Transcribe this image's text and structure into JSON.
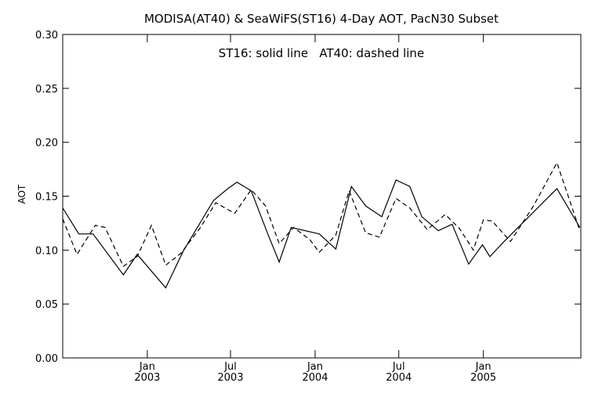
{
  "chart_data": {
    "type": "line",
    "title": "MODISA(AT40) & SeaWiFS(ST16) 4-Day AOT, PacN30 Subset",
    "annotation": "ST16: solid line   AT40: dashed line",
    "xlabel": "",
    "ylabel": "AOT",
    "ylim": [
      0.0,
      0.3
    ],
    "y_ticks": [
      "0.00",
      "0.05",
      "0.10",
      "0.15",
      "0.20",
      "0.25",
      "0.30"
    ],
    "y_tick_values": [
      0.0,
      0.05,
      0.1,
      0.15,
      0.2,
      0.25,
      0.3
    ],
    "xlim": [
      "2002-07-01",
      "2005-08-01"
    ],
    "x_ticks": [
      {
        "month": "Jan",
        "year": "2003",
        "date": "2003-01-01"
      },
      {
        "month": "Jul",
        "year": "2003",
        "date": "2003-07-01"
      },
      {
        "month": "Jan",
        "year": "2004",
        "date": "2004-01-01"
      },
      {
        "month": "Jul",
        "year": "2004",
        "date": "2004-07-01"
      },
      {
        "month": "Jan",
        "year": "2005",
        "date": "2005-01-01"
      }
    ],
    "grid": false,
    "series": [
      {
        "name": "ST16",
        "style": "solid",
        "color": "#000000",
        "points": [
          {
            "x": "2002-07-01",
            "y": 0.139
          },
          {
            "x": "2002-08-05",
            "y": 0.115
          },
          {
            "x": "2002-09-05",
            "y": 0.115
          },
          {
            "x": "2002-11-10",
            "y": 0.077
          },
          {
            "x": "2002-12-10",
            "y": 0.096
          },
          {
            "x": "2003-02-10",
            "y": 0.065
          },
          {
            "x": "2003-03-20",
            "y": 0.099
          },
          {
            "x": "2003-05-25",
            "y": 0.146
          },
          {
            "x": "2003-06-25",
            "y": 0.157
          },
          {
            "x": "2003-07-15",
            "y": 0.163
          },
          {
            "x": "2003-08-15",
            "y": 0.155
          },
          {
            "x": "2003-09-20",
            "y": 0.115
          },
          {
            "x": "2003-10-15",
            "y": 0.089
          },
          {
            "x": "2003-11-10",
            "y": 0.121
          },
          {
            "x": "2004-01-10",
            "y": 0.115
          },
          {
            "x": "2004-02-15",
            "y": 0.101
          },
          {
            "x": "2004-03-20",
            "y": 0.159
          },
          {
            "x": "2004-04-20",
            "y": 0.141
          },
          {
            "x": "2004-05-25",
            "y": 0.131
          },
          {
            "x": "2004-06-25",
            "y": 0.165
          },
          {
            "x": "2004-07-25",
            "y": 0.159
          },
          {
            "x": "2004-08-20",
            "y": 0.131
          },
          {
            "x": "2004-09-25",
            "y": 0.118
          },
          {
            "x": "2004-10-25",
            "y": 0.124
          },
          {
            "x": "2004-11-30",
            "y": 0.087
          },
          {
            "x": "2004-12-30",
            "y": 0.105
          },
          {
            "x": "2005-01-15",
            "y": 0.094
          },
          {
            "x": "2005-02-15",
            "y": 0.108
          },
          {
            "x": "2005-06-10",
            "y": 0.157
          },
          {
            "x": "2005-07-30",
            "y": 0.121
          }
        ]
      },
      {
        "name": "AT40",
        "style": "dashed",
        "color": "#000000",
        "points": [
          {
            "x": "2002-07-01",
            "y": 0.129
          },
          {
            "x": "2002-08-01",
            "y": 0.096
          },
          {
            "x": "2002-09-10",
            "y": 0.123
          },
          {
            "x": "2002-10-01",
            "y": 0.121
          },
          {
            "x": "2002-11-10",
            "y": 0.085
          },
          {
            "x": "2002-12-10",
            "y": 0.094
          },
          {
            "x": "2003-01-10",
            "y": 0.123
          },
          {
            "x": "2003-02-10",
            "y": 0.086
          },
          {
            "x": "2003-03-15",
            "y": 0.097
          },
          {
            "x": "2003-04-25",
            "y": 0.12
          },
          {
            "x": "2003-05-30",
            "y": 0.144
          },
          {
            "x": "2003-07-10",
            "y": 0.134
          },
          {
            "x": "2003-08-15",
            "y": 0.156
          },
          {
            "x": "2003-09-15",
            "y": 0.141
          },
          {
            "x": "2003-10-15",
            "y": 0.106
          },
          {
            "x": "2003-11-15",
            "y": 0.121
          },
          {
            "x": "2003-12-20",
            "y": 0.11
          },
          {
            "x": "2004-01-10",
            "y": 0.098
          },
          {
            "x": "2004-02-15",
            "y": 0.114
          },
          {
            "x": "2004-03-15",
            "y": 0.155
          },
          {
            "x": "2004-04-20",
            "y": 0.116
          },
          {
            "x": "2004-05-20",
            "y": 0.112
          },
          {
            "x": "2004-06-25",
            "y": 0.148
          },
          {
            "x": "2004-07-25",
            "y": 0.139
          },
          {
            "x": "2004-09-01",
            "y": 0.119
          },
          {
            "x": "2004-10-10",
            "y": 0.133
          },
          {
            "x": "2004-11-10",
            "y": 0.12
          },
          {
            "x": "2004-12-10",
            "y": 0.1
          },
          {
            "x": "2005-01-01",
            "y": 0.128
          },
          {
            "x": "2005-01-20",
            "y": 0.127
          },
          {
            "x": "2005-03-01",
            "y": 0.108
          },
          {
            "x": "2005-04-20",
            "y": 0.141
          },
          {
            "x": "2005-06-10",
            "y": 0.181
          },
          {
            "x": "2005-07-30",
            "y": 0.118
          }
        ]
      }
    ]
  }
}
